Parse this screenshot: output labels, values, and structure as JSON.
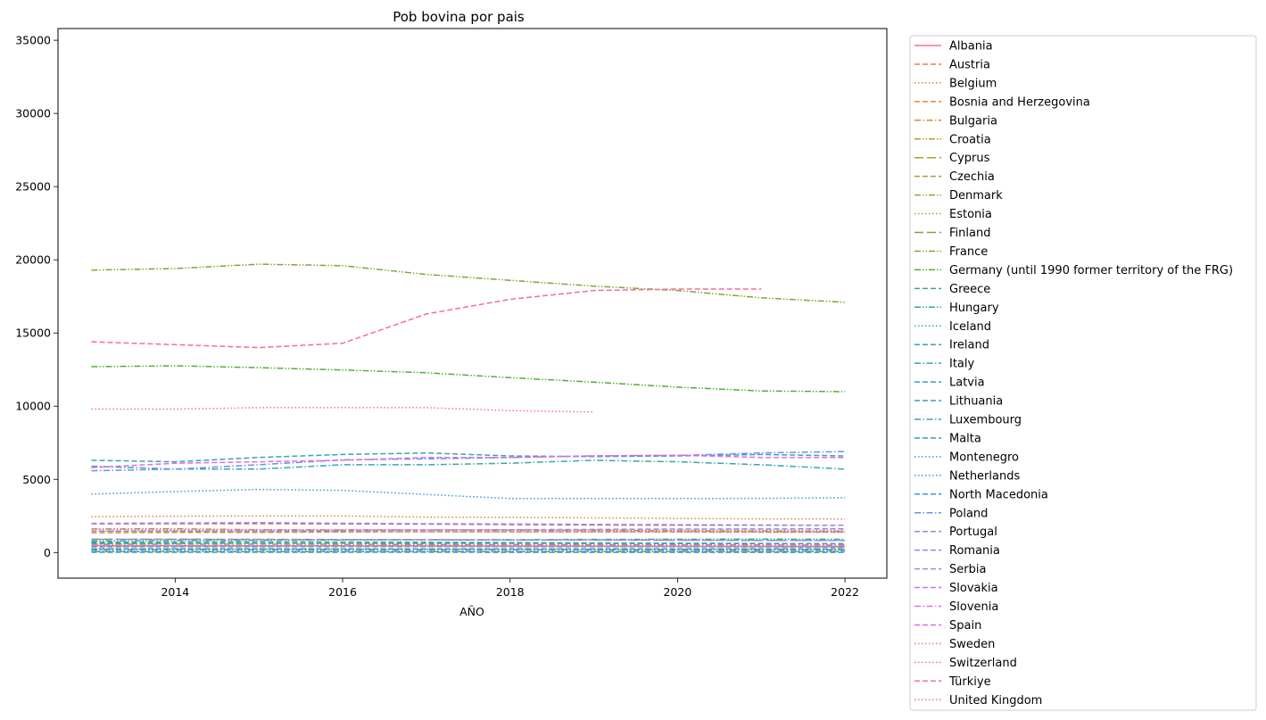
{
  "chart_data": {
    "type": "line",
    "title": "Pob bovina por pais",
    "xlabel": "AÑO",
    "ylabel": "",
    "xlim": [
      2012.6,
      2022.5
    ],
    "ylim": [
      -1750,
      35800
    ],
    "xticks": [
      2014,
      2016,
      2018,
      2020,
      2022
    ],
    "yticks": [
      0,
      5000,
      10000,
      15000,
      20000,
      25000,
      30000,
      35000
    ],
    "grid": false,
    "legend_position": "outside-right",
    "years": [
      2013,
      2014,
      2015,
      2016,
      2017,
      2018,
      2019,
      2020,
      2021,
      2022
    ],
    "series": [
      {
        "name": "Albania",
        "color": "#f77189",
        "dash": "solid",
        "values": [
          480,
          470,
          460,
          455,
          450,
          440,
          430,
          420,
          415,
          405
        ]
      },
      {
        "name": "Austria",
        "color": "#f7754f",
        "dash": "dashed",
        "values": [
          1960,
          1960,
          1960,
          1950,
          1940,
          1900,
          1880,
          1860,
          1870,
          1860
        ]
      },
      {
        "name": "Belgium",
        "color": "#dc8932",
        "dash": "dotted",
        "values": [
          2450,
          2480,
          2500,
          2500,
          2420,
          2400,
          2370,
          2330,
          2300,
          2290
        ]
      },
      {
        "name": "Bosnia and Herzegovina",
        "color": "#dc8932",
        "dash": "dashed",
        "values": [
          450,
          440,
          440,
          430,
          430,
          420,
          410,
          400,
          390,
          380
        ]
      },
      {
        "name": "Bulgaria",
        "color": "#c39532",
        "dash": "dashdot",
        "values": [
          570,
          580,
          570,
          560,
          550,
          540,
          540,
          530,
          520,
          510
        ]
      },
      {
        "name": "Croatia",
        "color": "#c39532",
        "dash": "dashdotdot",
        "values": [
          440,
          440,
          445,
          450,
          450,
          440,
          430,
          430,
          420,
          410
        ]
      },
      {
        "name": "Cyprus",
        "color": "#ae9d31",
        "dash": "longdash",
        "values": [
          60,
          62,
          63,
          65,
          70,
          72,
          75,
          78,
          80,
          80
        ]
      },
      {
        "name": "Czechia",
        "color": "#ae9d31",
        "dash": "dashed",
        "values": [
          1350,
          1370,
          1380,
          1410,
          1420,
          1420,
          1420,
          1420,
          1410,
          1400
        ]
      },
      {
        "name": "Denmark",
        "color": "#97a431",
        "dash": "dashdotdot",
        "values": [
          1610,
          1620,
          1560,
          1550,
          1540,
          1520,
          1510,
          1480,
          1460,
          1450
        ]
      },
      {
        "name": "Estonia",
        "color": "#97a431",
        "dash": "dotted",
        "values": [
          260,
          260,
          260,
          250,
          250,
          250,
          250,
          250,
          250,
          250
        ]
      },
      {
        "name": "Finland",
        "color": "#77ab31",
        "dash": "longdash",
        "values": [
          910,
          910,
          900,
          890,
          870,
          860,
          850,
          840,
          830,
          820
        ]
      },
      {
        "name": "France",
        "color": "#77ab31",
        "dash": "dashdotdot",
        "values": [
          19300,
          19400,
          19700,
          19600,
          19000,
          18600,
          18200,
          17900,
          17400,
          17100
        ]
      },
      {
        "name": "Germany (until 1990 former territory of the FRG)",
        "color": "#50b131",
        "dash": "dashdotdot",
        "values": [
          12700,
          12760,
          12630,
          12470,
          12280,
          11950,
          11640,
          11300,
          11040,
          10990
        ]
      },
      {
        "name": "Greece",
        "color": "#33b07a",
        "dash": "dashed",
        "values": [
          620,
          620,
          625,
          630,
          630,
          630,
          620,
          615,
          610,
          600
        ]
      },
      {
        "name": "Hungary",
        "color": "#35ac9a",
        "dash": "dashdotdot",
        "values": [
          800,
          820,
          840,
          860,
          870,
          880,
          900,
          910,
          920,
          900
        ]
      },
      {
        "name": "Iceland",
        "color": "#35ac9a",
        "dash": "dotted",
        "values": [
          70,
          71,
          72,
          73,
          74,
          75,
          76,
          77,
          78,
          78
        ]
      },
      {
        "name": "Ireland",
        "color": "#36a7ab",
        "dash": "dashed",
        "values": [
          6300,
          6200,
          6500,
          6700,
          6800,
          6600,
          6550,
          6600,
          6700,
          6600
        ]
      },
      {
        "name": "Italy",
        "color": "#36a7ab",
        "dash": "dashdotted",
        "values": [
          5900,
          5700,
          5700,
          6000,
          6000,
          6100,
          6300,
          6200,
          6000,
          5700
        ]
      },
      {
        "name": "Latvia",
        "color": "#38a2b6",
        "dash": "dashed",
        "values": [
          390,
          400,
          400,
          410,
          410,
          400,
          400,
          395,
          390,
          380
        ]
      },
      {
        "name": "Lithuania",
        "color": "#38a2b6",
        "dash": "dashed",
        "values": [
          700,
          715,
          730,
          720,
          700,
          680,
          660,
          640,
          620,
          600
        ]
      },
      {
        "name": "Luxembourg",
        "color": "#3a9cc5",
        "dash": "dashdot",
        "values": [
          190,
          195,
          195,
          195,
          195,
          195,
          190,
          190,
          185,
          185
        ]
      },
      {
        "name": "Malta",
        "color": "#3a9cc5",
        "dash": "dashed",
        "values": [
          15,
          15,
          15,
          15,
          15,
          14,
          14,
          14,
          13,
          13
        ]
      },
      {
        "name": "Montenegro",
        "color": "#3a9cc5",
        "dash": "dotted",
        "values": [
          90,
          88,
          86,
          84,
          82,
          80,
          78,
          76,
          74,
          72
        ]
      },
      {
        "name": "Netherlands",
        "color": "#3a9cc5",
        "dash": "dotted",
        "values": [
          3990,
          4170,
          4310,
          4250,
          3970,
          3690,
          3690,
          3690,
          3700,
          3750
        ]
      },
      {
        "name": "North Macedonia",
        "color": "#3d96e1",
        "dash": "dashed",
        "values": [
          250,
          250,
          250,
          250,
          250,
          250,
          250,
          250,
          250,
          250
        ]
      },
      {
        "name": "Poland",
        "color": "#6d8ef7",
        "dash": "dashdotted",
        "values": [
          5590,
          5700,
          6000,
          6330,
          6400,
          6490,
          6610,
          6630,
          6800,
          6900
        ]
      },
      {
        "name": "Portugal",
        "color": "#8e85f3",
        "dash": "dashed",
        "values": [
          1460,
          1460,
          1480,
          1500,
          1540,
          1560,
          1580,
          1600,
          1610,
          1620
        ]
      },
      {
        "name": "Romania",
        "color": "#8e85f3",
        "dash": "dashed",
        "values": [
          1990,
          2020,
          2040,
          2000,
          1970,
          1950,
          1920,
          1900,
          1880,
          1860
        ]
      },
      {
        "name": "Serbia",
        "color": "#b07df3",
        "dash": "dashed",
        "values": [
          900,
          900,
          890,
          880,
          870,
          860,
          850,
          840,
          830,
          820
        ]
      },
      {
        "name": "Slovakia",
        "color": "#cc72f3",
        "dash": "dashed",
        "values": [
          460,
          460,
          460,
          460,
          450,
          440,
          440,
          430,
          430,
          430
        ]
      },
      {
        "name": "Slovenia",
        "color": "#e56ae2",
        "dash": "dashdot",
        "values": [
          460,
          460,
          460,
          460,
          460,
          470,
          470,
          470,
          470,
          470
        ]
      },
      {
        "name": "Spain",
        "color": "#e56ae2",
        "dash": "dashed",
        "values": [
          5800,
          6100,
          6200,
          6300,
          6500,
          6500,
          6600,
          6650,
          6500,
          6500
        ]
      },
      {
        "name": "Sweden",
        "color": "#f066c6",
        "dash": "dotted",
        "values": [
          1450,
          1460,
          1440,
          1430,
          1420,
          1400,
          1400,
          1390,
          1380,
          1380
        ]
      },
      {
        "name": "Switzerland",
        "color": "#f46bb0",
        "dash": "dotted",
        "values": [
          1580,
          1560,
          1560,
          1560,
          1540,
          1540,
          1530,
          1520,
          1520,
          1510
        ]
      },
      {
        "name": "Türkiye",
        "color": "#f56ba0",
        "dash": "dashed",
        "values": [
          14400,
          14200,
          14000,
          14300,
          16300,
          17300,
          17900,
          18000,
          18000,
          null
        ]
      },
      {
        "name": "United Kingdom",
        "color": "#f77189",
        "dash": "dotted",
        "values": [
          9800,
          9800,
          9900,
          9900,
          9900,
          9700,
          9600,
          null,
          null,
          null
        ]
      }
    ]
  }
}
